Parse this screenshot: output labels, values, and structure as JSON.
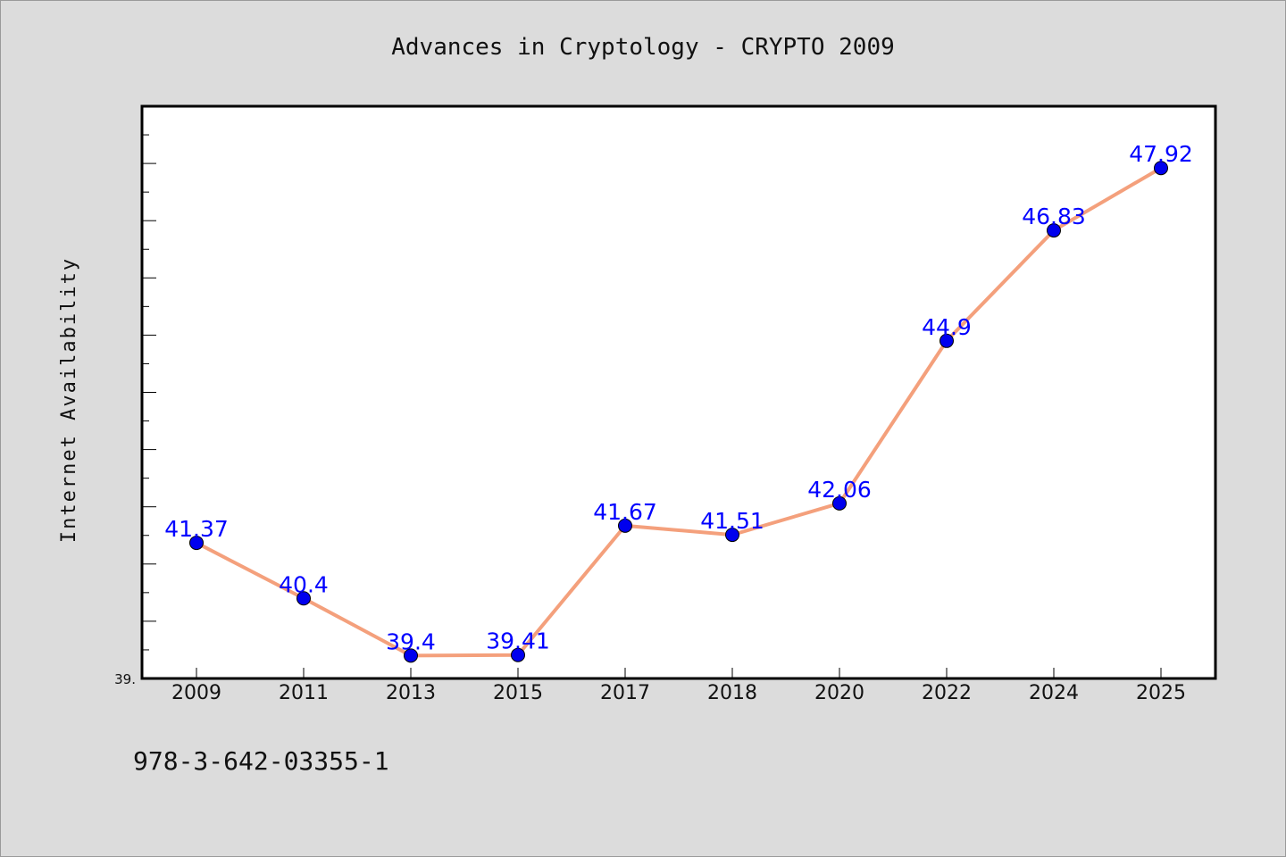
{
  "chart_data": {
    "type": "line",
    "title": "Advances in Cryptology - CRYPTO 2009",
    "xlabel": "",
    "ylabel": "Internet Availability",
    "categories": [
      "2009",
      "2011",
      "2013",
      "2015",
      "2017",
      "2018",
      "2020",
      "2022",
      "2024",
      "2025"
    ],
    "series": [
      {
        "values": [
          41.37,
          40.4,
          39.4,
          39.41,
          41.67,
          41.51,
          42.06,
          44.9,
          46.83,
          47.92
        ],
        "labels": [
          "41.37",
          "40.4",
          "39.4",
          "39.41",
          "41.67",
          "41.51",
          "42.06",
          "44.9",
          "46.83",
          "47.92"
        ],
        "line_color": "#f4a07c",
        "marker_color": "#0000ee",
        "label_color": "#0000ff"
      }
    ],
    "ylim": [
      39.0,
      49.0
    ],
    "ytick_label": "39.",
    "grid": false,
    "legend": "none"
  },
  "footer_text": "978-3-642-03355-1",
  "colors": {
    "background": "#dcdcdc",
    "plot_background": "#ffffff",
    "axis": "#000000"
  }
}
